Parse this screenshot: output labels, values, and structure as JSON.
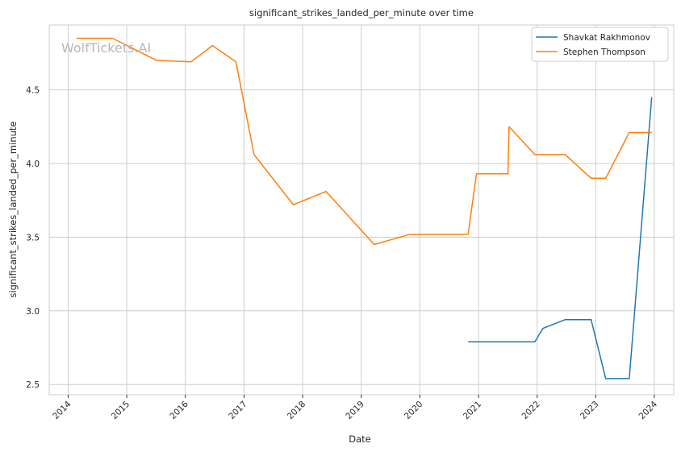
{
  "watermark": "WolfTickets.AI",
  "chart_data": {
    "type": "line",
    "title": "significant_strikes_landed_per_minute over time",
    "xlabel": "Date",
    "ylabel": "significant_strikes_landed_per_minute",
    "x_ticks": [
      "2014",
      "2015",
      "2016",
      "2017",
      "2018",
      "2019",
      "2020",
      "2021",
      "2022",
      "2023",
      "2024"
    ],
    "y_ticks": [
      "2.5",
      "3.0",
      "3.5",
      "4.0",
      "4.5"
    ],
    "xlim": [
      "2013-09-05",
      "2024-05-01"
    ],
    "ylim": [
      2.43,
      4.94
    ],
    "grid": true,
    "legend_position": "top-right",
    "series": [
      {
        "name": "Shavkat Rakhmonov",
        "color": "#1f77b4",
        "points": [
          [
            "2020-10-28",
            2.79
          ],
          [
            "2021-12-18",
            2.79
          ],
          [
            "2022-02-05",
            2.88
          ],
          [
            "2022-06-25",
            2.94
          ],
          [
            "2022-12-03",
            2.94
          ],
          [
            "2023-03-04",
            2.54
          ],
          [
            "2023-07-29",
            2.54
          ],
          [
            "2023-12-16",
            4.45
          ]
        ]
      },
      {
        "name": "Stephen Thompson",
        "color": "#ff7f0e",
        "points": [
          [
            "2014-02-22",
            4.85
          ],
          [
            "2014-10-04",
            4.85
          ],
          [
            "2015-07-06",
            4.7
          ],
          [
            "2016-02-06",
            4.69
          ],
          [
            "2016-06-18",
            4.8
          ],
          [
            "2016-11-12",
            4.69
          ],
          [
            "2017-03-04",
            4.06
          ],
          [
            "2017-11-04",
            3.72
          ],
          [
            "2018-05-27",
            3.81
          ],
          [
            "2019-03-23",
            3.45
          ],
          [
            "2019-11-02",
            3.52
          ],
          [
            "2020-10-28",
            3.52
          ],
          [
            "2020-12-19",
            3.93
          ],
          [
            "2021-07-03",
            3.93
          ],
          [
            "2021-07-10",
            4.25
          ],
          [
            "2021-12-18",
            4.06
          ],
          [
            "2022-06-25",
            4.06
          ],
          [
            "2022-12-03",
            3.9
          ],
          [
            "2023-03-04",
            3.9
          ],
          [
            "2023-07-29",
            4.21
          ],
          [
            "2023-12-16",
            4.21
          ]
        ]
      }
    ]
  }
}
